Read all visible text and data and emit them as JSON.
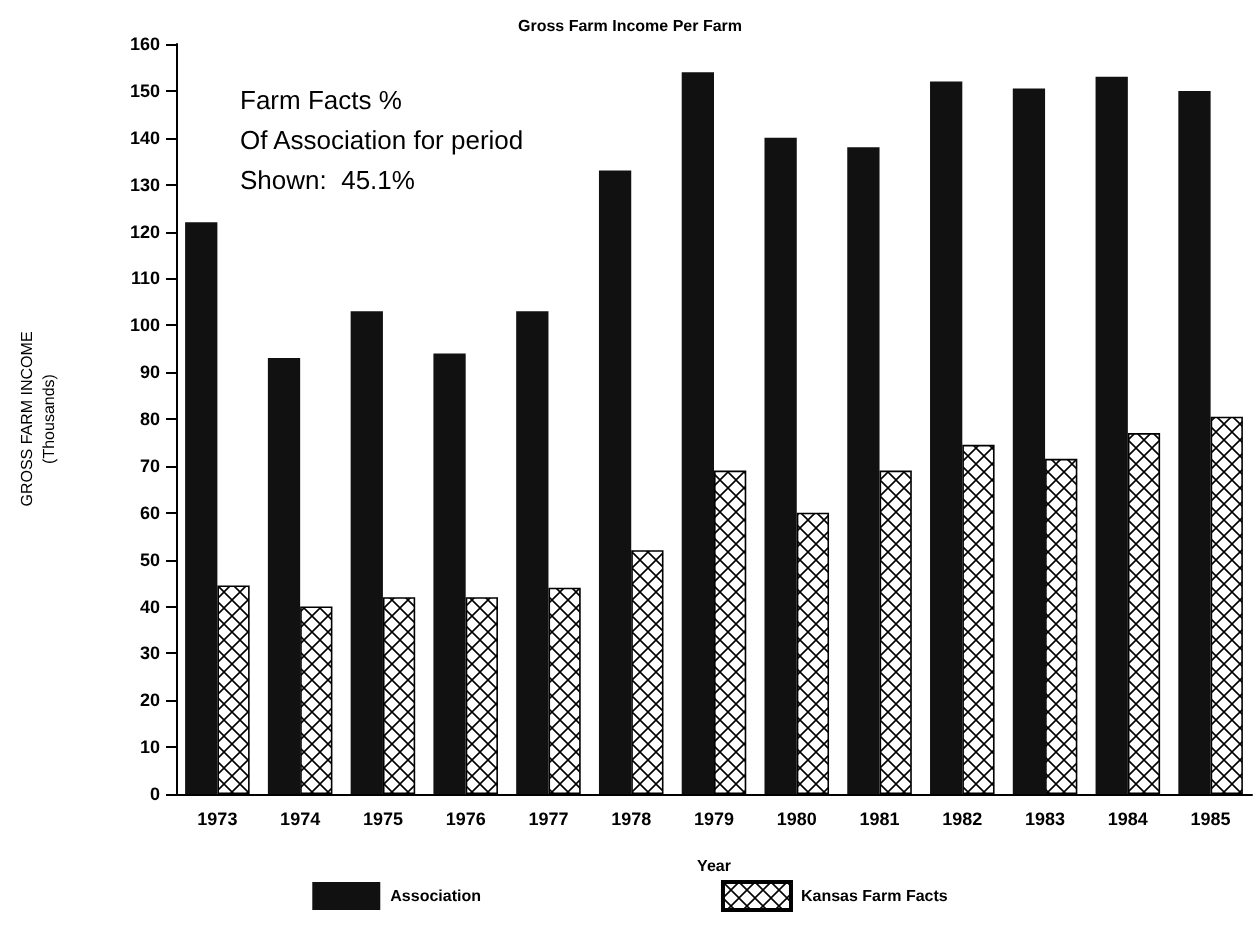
{
  "chart_data": {
    "type": "bar",
    "title": "Gross Farm Income Per Farm",
    "xlabel": "Year",
    "ylabel": "GROSS FARM INCOME\n(Thousands)",
    "categories": [
      "1973",
      "1974",
      "1975",
      "1976",
      "1977",
      "1978",
      "1979",
      "1980",
      "1981",
      "1982",
      "1983",
      "1984",
      "1985"
    ],
    "series": [
      {
        "name": "Association",
        "color": "#111111",
        "values": [
          122,
          93,
          103,
          94,
          103,
          133,
          154,
          140,
          138,
          152,
          150.5,
          153,
          150
        ]
      },
      {
        "name": "Kansas Farm Facts",
        "color": "#000000",
        "values": [
          44.5,
          40,
          42,
          42,
          44,
          52,
          69,
          60,
          69,
          74.5,
          71.5,
          77,
          80.5
        ]
      }
    ],
    "annotations": [
      "Farm Facts %\nOf Association for period\nShown:  45.1%"
    ],
    "ylim": [
      0,
      160
    ],
    "yticks": [
      0,
      10,
      20,
      30,
      40,
      50,
      60,
      70,
      80,
      90,
      100,
      110,
      120,
      130,
      140,
      150,
      160
    ],
    "grid": false,
    "legend": "bottom"
  }
}
